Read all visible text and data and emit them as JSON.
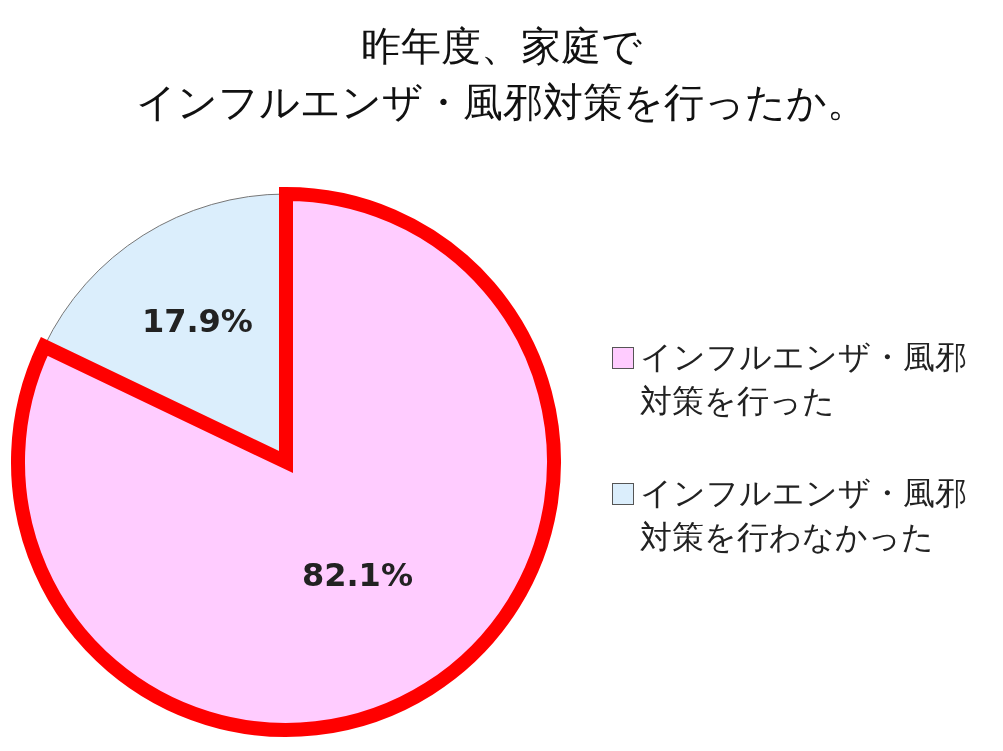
{
  "chart_data": {
    "type": "pie",
    "title": "昨年度、家庭で",
    "subtitle": "インフルエンザ・風邪対策を行ったか。",
    "categories": [
      "インフルエンザ・風邪対策を行った",
      "インフルエンザ・風邪対策を行わなかった"
    ],
    "values": [
      82.1,
      17.9
    ],
    "colors": [
      "#ffccff",
      "#dbeefc"
    ],
    "value_labels": [
      "82.1%",
      "17.9%"
    ],
    "legend": "right"
  }
}
